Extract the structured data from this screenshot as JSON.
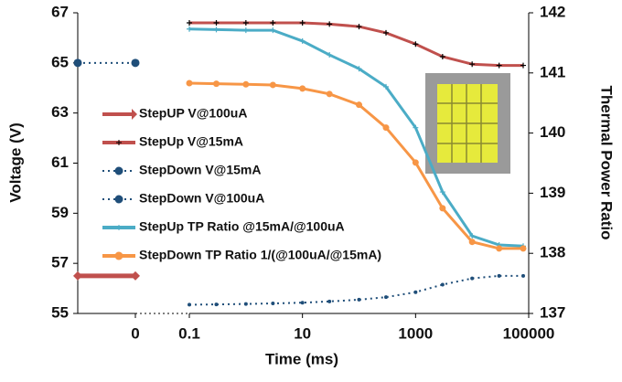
{
  "chart_data": [
    {
      "type": "line",
      "xlim": [
        -1,
        0
      ],
      "xticks": [
        0
      ],
      "ylim": [
        55,
        67
      ],
      "yticks": [
        55,
        57,
        59,
        61,
        63,
        65,
        67
      ],
      "ylabel": "Voltage (V)",
      "series": [
        {
          "name": "StepUP V@100uA",
          "color": "#c0504d",
          "marker": "diamond",
          "linestyle": "solid",
          "x": [
            -1,
            0
          ],
          "values": [
            56.5,
            56.5
          ]
        },
        {
          "name": "StepDown V@15mA",
          "color": "#1f4e79",
          "marker": "circle",
          "linestyle": "dotted",
          "x": [
            -1,
            0
          ],
          "values": [
            65,
            65
          ]
        }
      ]
    },
    {
      "type": "line",
      "xscale": "log",
      "xlim": [
        0.1,
        100000
      ],
      "xticks": [
        0.1,
        10,
        1000,
        100000
      ],
      "xlabel": "Time (ms)",
      "ylim": [
        55,
        67
      ],
      "y2lim": [
        137,
        142
      ],
      "y2ticks": [
        137,
        138,
        139,
        140,
        141,
        142
      ],
      "y2label": "Thermal Power Ratio",
      "x": [
        0.1,
        0.3,
        1,
        3,
        10,
        30,
        100,
        300,
        1000,
        3000,
        10000,
        30000,
        80000
      ],
      "series": [
        {
          "name": "StepUp V@15mA",
          "color": "#c0504d",
          "marker": "cross",
          "marker_color": "#000000",
          "linestyle": "solid",
          "values": [
            66.6,
            66.6,
            66.6,
            66.6,
            66.6,
            66.55,
            66.45,
            66.2,
            65.75,
            65.25,
            64.95,
            64.9,
            64.9
          ]
        },
        {
          "name": "StepDown V@100uA",
          "color": "#1f4e79",
          "marker": "circle",
          "linestyle": "dotted",
          "values": [
            55.35,
            55.36,
            55.38,
            55.4,
            55.43,
            55.48,
            55.55,
            55.65,
            55.85,
            56.15,
            56.4,
            56.5,
            56.5
          ]
        },
        {
          "name": "StepUp TP Ratio @15mA/@100uA",
          "color": "#4bacc6",
          "marker": "cross",
          "linestyle": "solid",
          "axis": "y2",
          "values": [
            141.73,
            141.72,
            141.71,
            141.71,
            141.53,
            141.3,
            141.07,
            140.77,
            140.09,
            139.02,
            138.29,
            138.14,
            138.12
          ]
        },
        {
          "name": "StepDown TP Ratio 1/(@100uA/@15mA)",
          "color": "#f79646",
          "marker": "circle",
          "linestyle": "solid",
          "axis": "y2",
          "values": [
            140.83,
            140.82,
            140.81,
            140.8,
            140.74,
            140.65,
            140.47,
            140.09,
            139.51,
            138.75,
            138.19,
            138.08,
            138.08
          ]
        }
      ]
    }
  ]
}
